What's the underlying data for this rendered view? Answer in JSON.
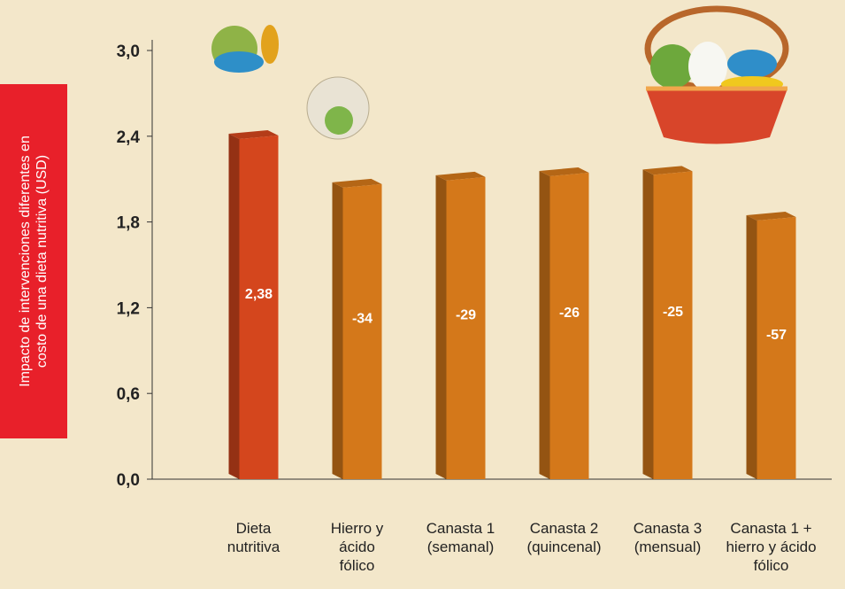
{
  "chart_data": {
    "type": "bar3d",
    "y_label": "Impacto de intervenciones diferentes en\ncosto de una dieta nutritiva (USD)",
    "categories": [
      "Dieta\nnutritiva",
      "Hierro y\nácido\nfólico",
      "Canasta 1\n(semanal)",
      "Canasta 2\n(quincenal)",
      "Canasta 3\n(mensual)",
      "Canasta 1 +\nhierro y ácido\nfólico"
    ],
    "values": [
      2.38,
      2.04,
      2.09,
      2.12,
      2.13,
      1.81
    ],
    "bar_labels": [
      "2,38",
      "-34",
      "-29",
      "-26",
      "-25",
      "-57"
    ],
    "colors": [
      "#d4461d",
      "#d4781a",
      "#d4781a",
      "#d4781a",
      "#d4781a",
      "#d4781a"
    ],
    "ylim": [
      0,
      3
    ],
    "yticks": [
      {
        "value": 0,
        "label": "0,0"
      },
      {
        "value": 0.6,
        "label": "0,6"
      },
      {
        "value": 1.2,
        "label": "1,2"
      },
      {
        "value": 1.8,
        "label": "1,8"
      },
      {
        "value": 2.4,
        "label": "2,4"
      },
      {
        "value": 3,
        "label": "3,0"
      }
    ]
  }
}
